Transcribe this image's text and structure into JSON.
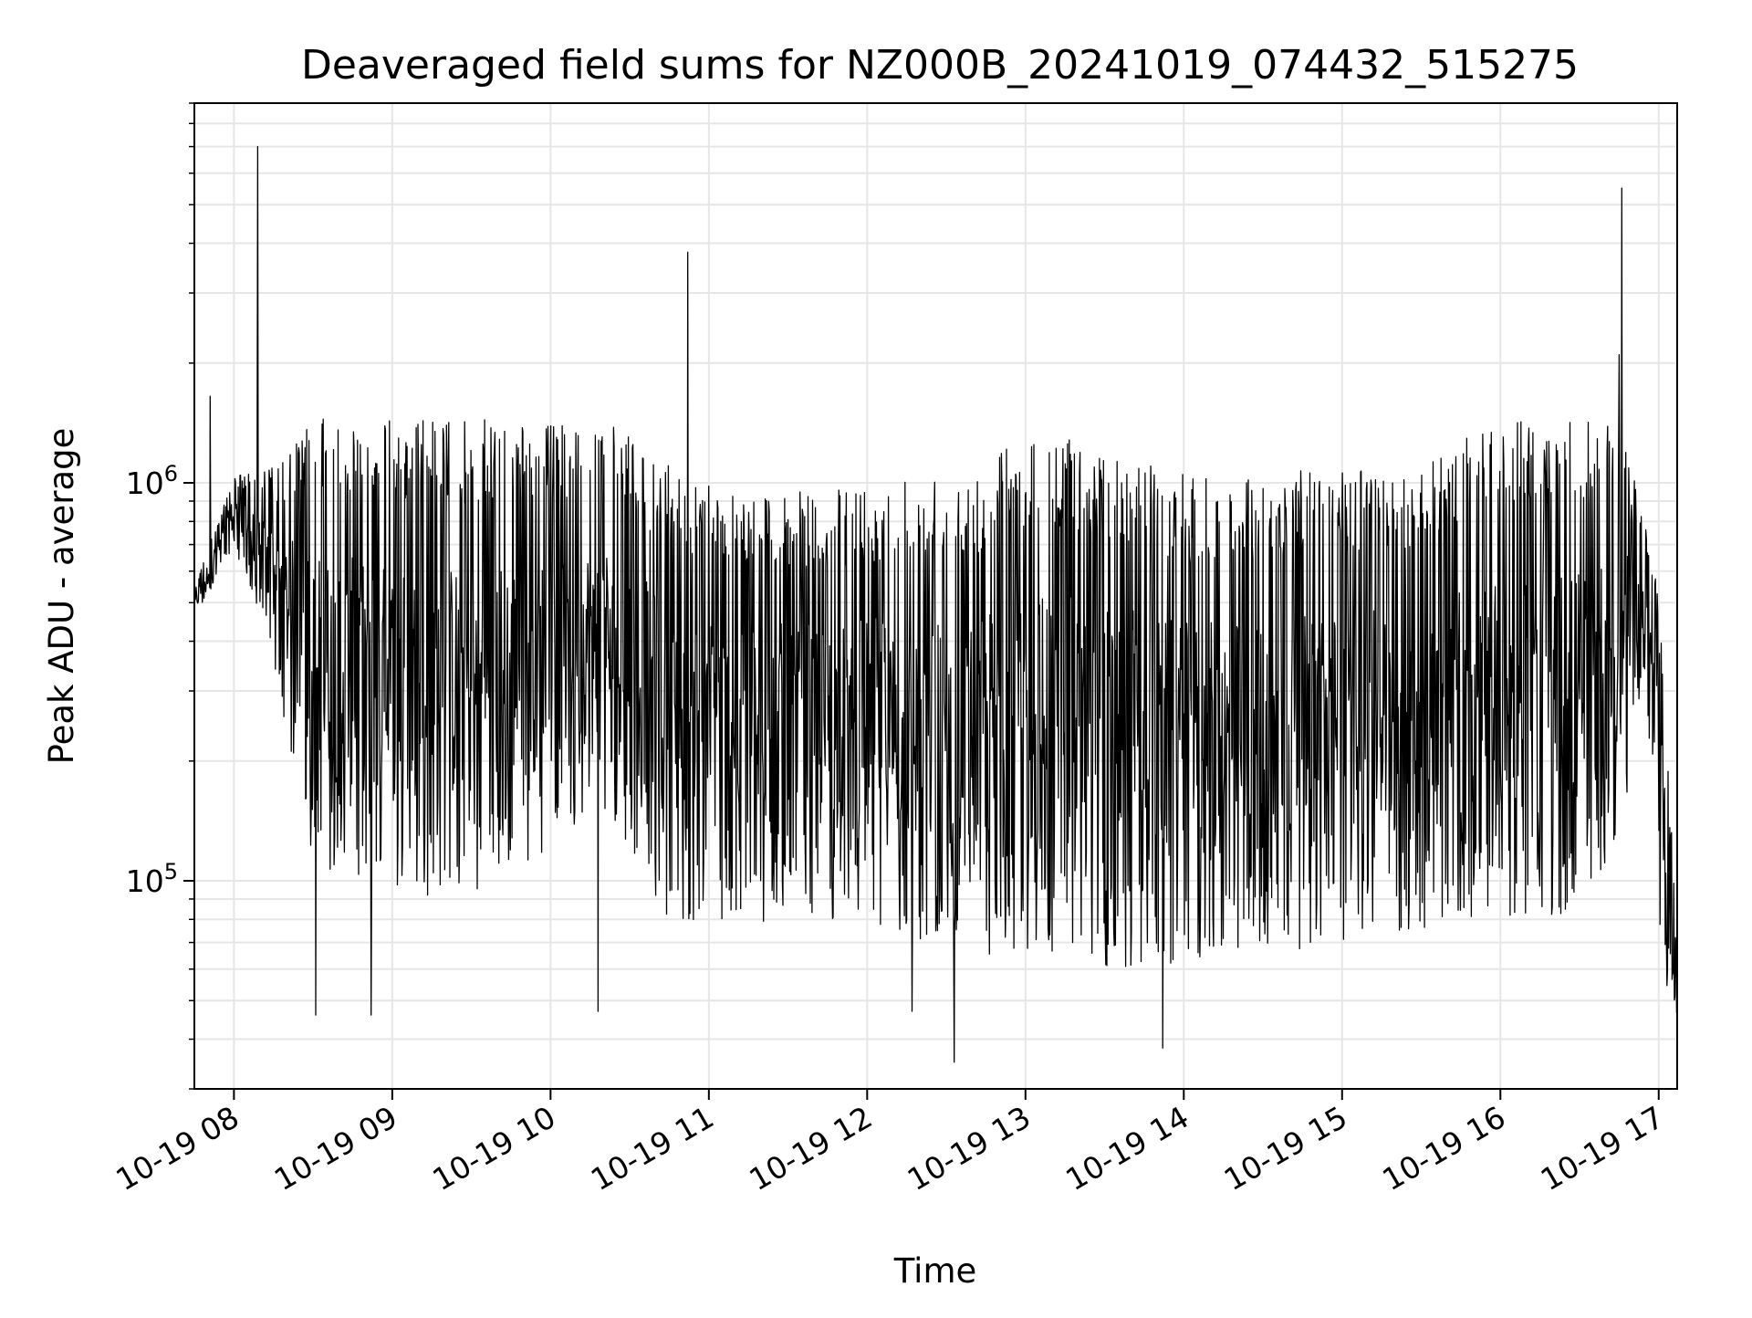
{
  "chart_data": {
    "type": "line",
    "title": "Deaveraged field sums for NZ000B_20241019_074432_515275",
    "xlabel": "Time",
    "ylabel": "Peak ADU - average",
    "yscale": "log",
    "xlim": [
      "2024-10-19 07:45",
      "2024-10-19 17:07"
    ],
    "ylim": [
      30000,
      9000000
    ],
    "x_ticks": [
      {
        "value": "2024-10-19 08:00",
        "label": "10-19 08"
      },
      {
        "value": "2024-10-19 09:00",
        "label": "10-19 09"
      },
      {
        "value": "2024-10-19 10:00",
        "label": "10-19 10"
      },
      {
        "value": "2024-10-19 11:00",
        "label": "10-19 11"
      },
      {
        "value": "2024-10-19 12:00",
        "label": "10-19 12"
      },
      {
        "value": "2024-10-19 13:00",
        "label": "10-19 13"
      },
      {
        "value": "2024-10-19 14:00",
        "label": "10-19 14"
      },
      {
        "value": "2024-10-19 15:00",
        "label": "10-19 15"
      },
      {
        "value": "2024-10-19 16:00",
        "label": "10-19 16"
      },
      {
        "value": "2024-10-19 17:00",
        "label": "10-19 17"
      }
    ],
    "y_ticks": [
      {
        "value": 100000,
        "base": "10",
        "exp": "5"
      },
      {
        "value": 1000000,
        "base": "10",
        "exp": "6"
      }
    ],
    "grid": true,
    "line_color": "#000000",
    "grid_color": "#e6e6e6",
    "envelope": {
      "x": [
        "2024-10-19 07:45",
        "2024-10-19 08:00",
        "2024-10-19 08:15",
        "2024-10-19 08:30",
        "2024-10-19 09:00",
        "2024-10-19 09:30",
        "2024-10-19 10:00",
        "2024-10-19 10:20",
        "2024-10-19 10:45",
        "2024-10-19 11:15",
        "2024-10-19 11:45",
        "2024-10-19 12:15",
        "2024-10-19 12:40",
        "2024-10-19 13:00",
        "2024-10-19 13:30",
        "2024-10-19 14:00",
        "2024-10-19 14:30",
        "2024-10-19 15:00",
        "2024-10-19 15:30",
        "2024-10-19 15:45",
        "2024-10-19 16:15",
        "2024-10-19 16:30",
        "2024-10-19 16:45",
        "2024-10-19 16:55",
        "2024-10-19 17:00",
        "2024-10-19 17:07"
      ],
      "upper": [
        550000,
        1050000,
        1100000,
        1450000,
        1450000,
        1450000,
        1400000,
        1450000,
        1100000,
        950000,
        950000,
        1050000,
        1100000,
        1350000,
        1250000,
        1050000,
        1050000,
        1100000,
        1050000,
        1350000,
        1450000,
        1450000,
        1400000,
        800000,
        550000,
        75000
      ],
      "lower": [
        450000,
        700000,
        350000,
        110000,
        90000,
        90000,
        120000,
        150000,
        80000,
        75000,
        80000,
        70000,
        60000,
        65000,
        60000,
        60000,
        65000,
        70000,
        75000,
        80000,
        80000,
        85000,
        120000,
        350000,
        60000,
        45000
      ]
    },
    "spikes": [
      {
        "x": "2024-10-19 07:51",
        "y": 1650000
      },
      {
        "x": "2024-10-19 08:09",
        "y": 7000000
      },
      {
        "x": "2024-10-19 08:31",
        "y": 46000
      },
      {
        "x": "2024-10-19 08:52",
        "y": 46000
      },
      {
        "x": "2024-10-19 10:18",
        "y": 47000
      },
      {
        "x": "2024-10-19 10:52",
        "y": 3800000
      },
      {
        "x": "2024-10-19 12:17",
        "y": 47000
      },
      {
        "x": "2024-10-19 12:33",
        "y": 35000
      },
      {
        "x": "2024-10-19 13:52",
        "y": 38000
      },
      {
        "x": "2024-10-19 16:46",
        "y": 5500000
      },
      {
        "x": "2024-10-19 16:45",
        "y": 2100000
      }
    ]
  }
}
